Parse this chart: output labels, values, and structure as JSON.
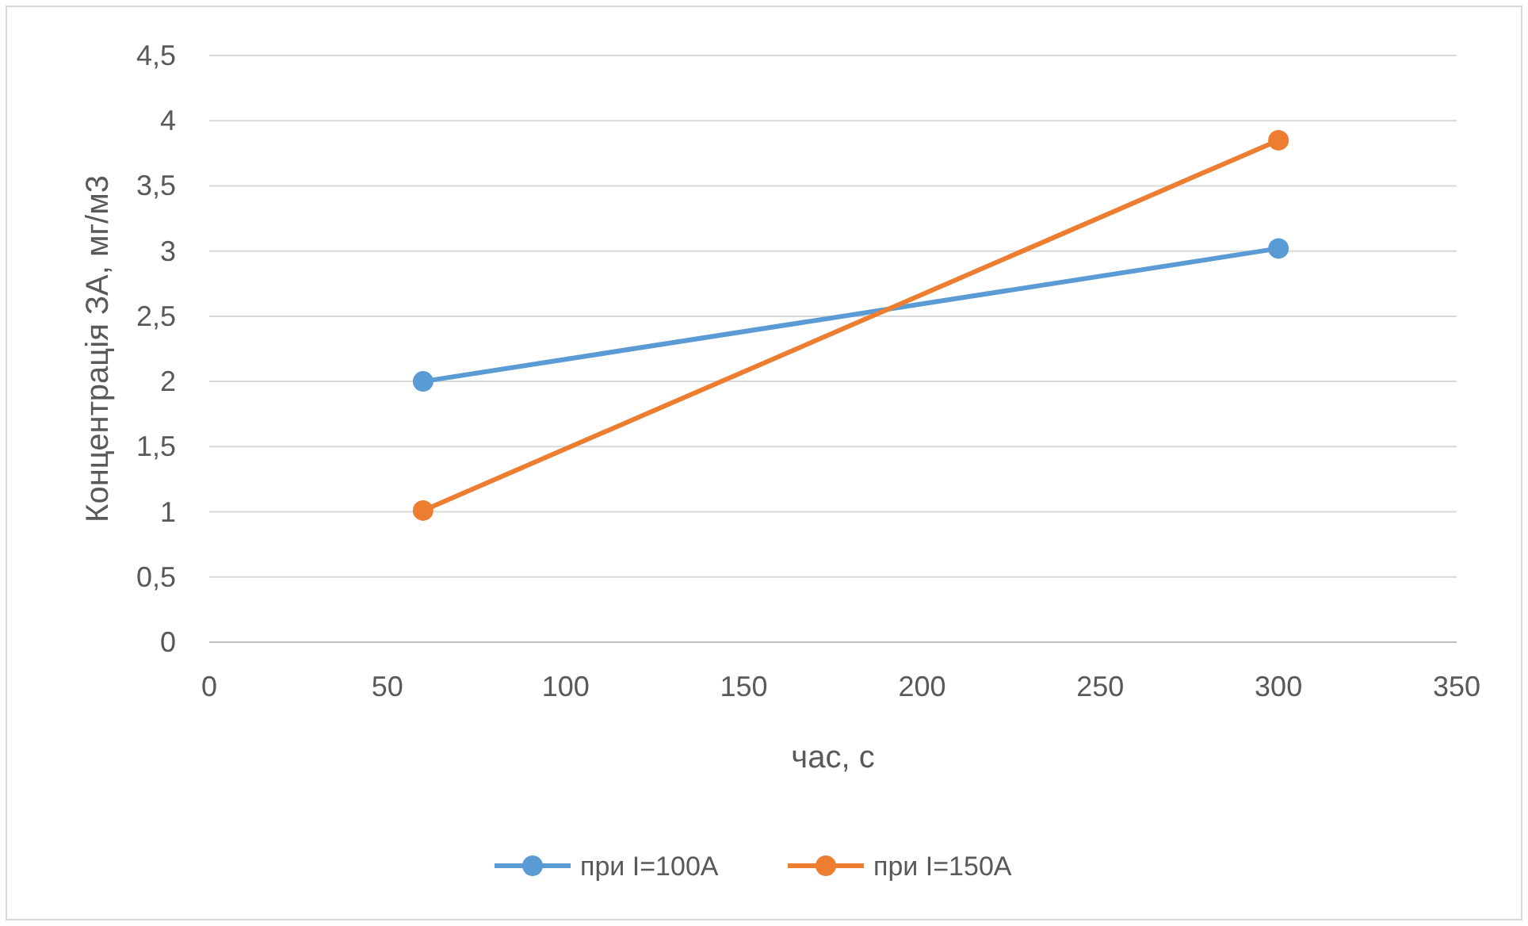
{
  "chart_data": {
    "type": "line",
    "xlabel": "час, с",
    "ylabel": "Концентрація ЗА, мг/м3",
    "xlim": [
      0,
      350
    ],
    "xticks": [
      0,
      50,
      100,
      150,
      200,
      250,
      300,
      350
    ],
    "ylim": [
      0,
      4.5
    ],
    "yticks": [
      0,
      {
        "value": 0.5,
        "label": "0,5"
      },
      1,
      {
        "value": 1.5,
        "label": "1,5"
      },
      2,
      {
        "value": 2.5,
        "label": "2,5"
      },
      3,
      {
        "value": 3.5,
        "label": "3,5"
      },
      4,
      {
        "value": 4.5,
        "label": "4,5"
      }
    ],
    "x": [
      60,
      300
    ],
    "grid": "y",
    "legend": "bottom",
    "marker": "circle",
    "line_style": "solid",
    "series": [
      {
        "name": "при I=100А",
        "color": "#5b9bd5",
        "values": [
          2,
          3.02
        ]
      },
      {
        "name": "при I=150А",
        "color": "#ed7d31",
        "values": [
          1.01,
          3.85
        ]
      }
    ]
  }
}
